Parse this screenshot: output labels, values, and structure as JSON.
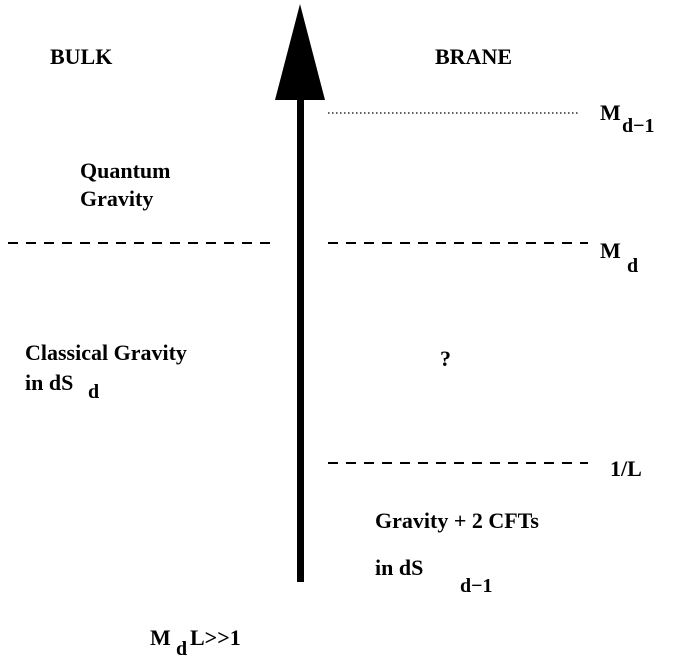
{
  "left_header": "BULK",
  "right_header": "BRANE",
  "scales": [
    {
      "label": "M",
      "subscript": "d−1"
    },
    {
      "label": "M",
      "subscript": "d"
    },
    {
      "label": "1/L"
    }
  ],
  "bulk_regions": [
    {
      "lines": [
        "Quantum",
        "Gravity"
      ]
    },
    {
      "lines": [
        "Classical Gravity",
        "in dS"
      ],
      "subscript": "d"
    }
  ],
  "brane_regions": [
    {
      "lines": [
        "?"
      ]
    },
    {
      "lines": [
        "Gravity + 2 CFTs",
        "in dS"
      ],
      "subscript": "d−1"
    }
  ],
  "condition": {
    "label": "M",
    "subscript": "d",
    "suffix": "L>>1"
  }
}
